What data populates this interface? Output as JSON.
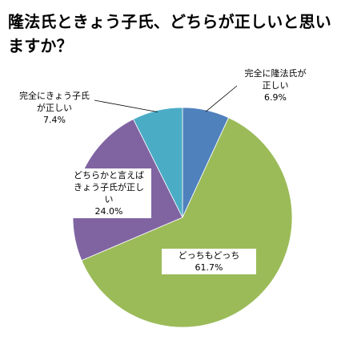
{
  "chart_data": {
    "type": "pie",
    "title": "隆法氏ときょう子氏、どちらが正しいと思いますか？",
    "categories": [
      "完全に隆法氏が正しい",
      "どっちもどっち",
      "どちらかと言えばきょう子氏が正しい",
      "完全にきょう子氏が正しい"
    ],
    "values": [
      6.9,
      61.7,
      24.0,
      7.4
    ],
    "value_labels": [
      "6.9%",
      "61.7%",
      "24.0%",
      "7.4%"
    ],
    "label_lines": [
      [
        "完全に隆法氏が",
        "正しい"
      ],
      [
        "どっちもどっち"
      ],
      [
        "どちらかと言えば",
        "きょう子氏が正し",
        "い"
      ],
      [
        "完全にきょう子氏",
        "が正しい"
      ]
    ],
    "colors": [
      "#4F81BD",
      "#9BBB59",
      "#8064A2",
      "#4BACC6"
    ],
    "start_angle_deg": 0,
    "direction": "clockwise",
    "legend": "none"
  }
}
